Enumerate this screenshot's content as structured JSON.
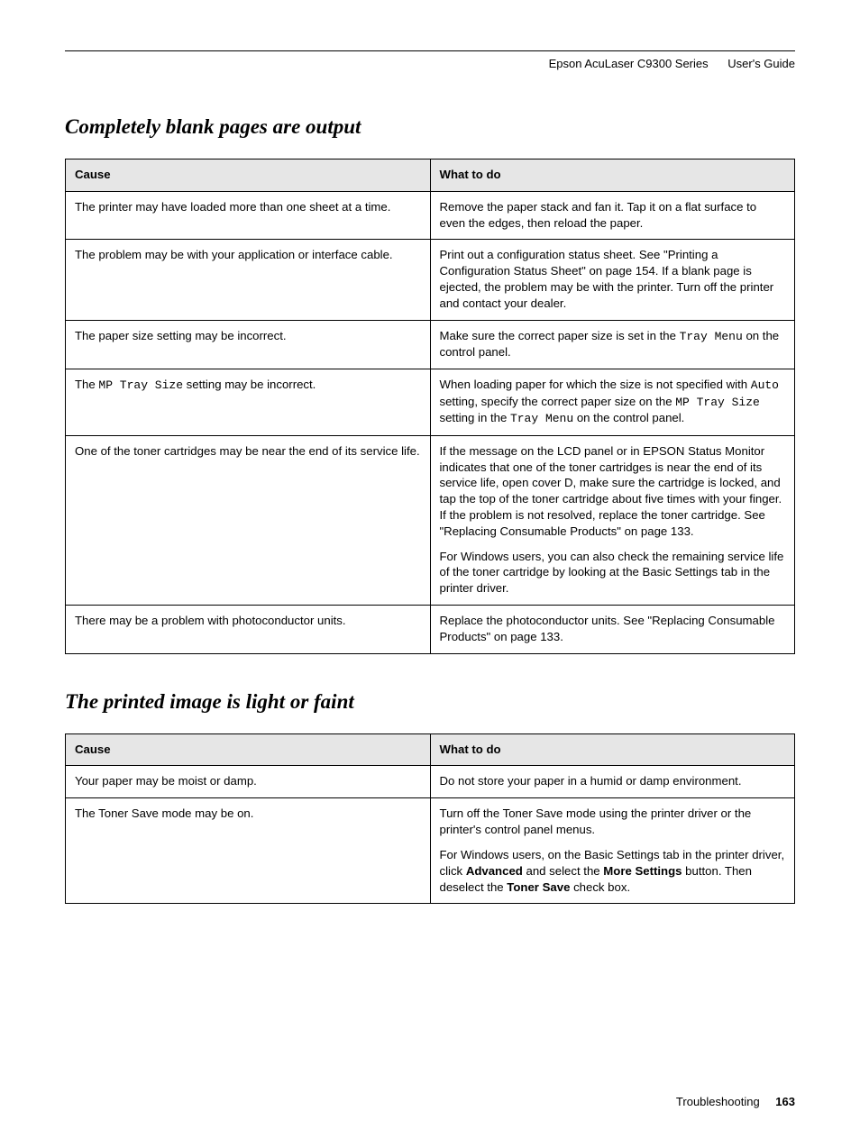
{
  "header": {
    "product": "Epson AcuLaser C9300 Series",
    "doc": "User's Guide"
  },
  "section1": {
    "title": "Completely blank pages are output",
    "col_cause": "Cause",
    "col_what": "What to do",
    "rows": [
      {
        "cause": "The printer may have loaded more than one sheet at a time.",
        "what": "Remove the paper stack and fan it. Tap it on a flat surface to even the edges, then reload the paper."
      },
      {
        "cause": "The problem may be with your application or interface cable.",
        "what": "Print out a configuration status sheet. See \"Printing a Configuration Status Sheet\" on page 154. If a blank page is ejected, the problem may be with the printer. Turn off the printer and contact your dealer."
      },
      {
        "cause": "The paper size setting may be incorrect.",
        "what_pre": "Make sure the correct paper size is set in the ",
        "what_mono": "Tray Menu",
        "what_post": " on the control panel."
      },
      {
        "cause_pre": "The ",
        "cause_mono": "MP Tray Size",
        "cause_post": " setting may be incorrect.",
        "what_pre": "When loading paper for which the size is not specified with ",
        "what_mono1": "Auto",
        "what_mid1": " setting, specify the correct paper size on the ",
        "what_mono2": "MP Tray Size",
        "what_mid2": " setting in the ",
        "what_mono3": "Tray Menu",
        "what_post": " on the control panel."
      },
      {
        "cause": "One of the toner cartridges may be near the end of its service life.",
        "what": "If the message on the LCD panel or in EPSON Status Monitor indicates that one of the toner cartridges is near the end of its service life, open cover D, make sure the cartridge is locked, and tap the top of the toner cartridge about five times with your finger. If the problem is not resolved, replace the toner cartridge. See \"Replacing Consumable Products\" on page 133.",
        "what2": "For Windows users, you can also check the remaining service life of the toner cartridge by looking at the Basic Settings tab in the printer driver."
      },
      {
        "cause": "There may be a problem with photoconductor units.",
        "what": "Replace the photoconductor units. See \"Replacing Consumable Products\" on page 133."
      }
    ]
  },
  "section2": {
    "title": "The printed image is light or faint",
    "col_cause": "Cause",
    "col_what": "What to do",
    "rows": [
      {
        "cause": "Your paper may be moist or damp.",
        "what": "Do not store your paper in a humid or damp environment."
      },
      {
        "cause": "The Toner Save mode may be on.",
        "what": "Turn off the Toner Save mode using the printer driver or the printer's control panel menus.",
        "what2_pre": "For Windows users, on the Basic Settings tab in the printer driver, click ",
        "what2_b1": "Advanced",
        "what2_mid1": " and select the ",
        "what2_b2": "More Settings",
        "what2_mid2": " button. Then deselect the ",
        "what2_b3": "Toner Save",
        "what2_post": " check box."
      }
    ]
  },
  "footer": {
    "chapter": "Troubleshooting",
    "page": "163"
  }
}
